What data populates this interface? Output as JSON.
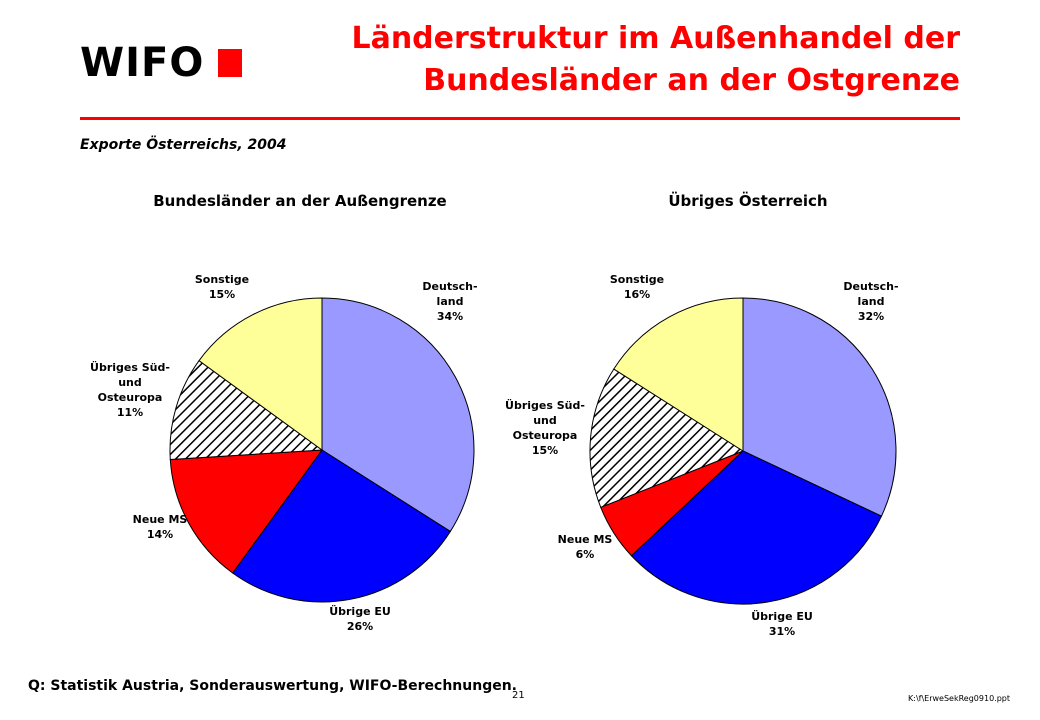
{
  "logo": {
    "text": "WIFO",
    "square_color": "#ff0000"
  },
  "title": {
    "line1": "Länderstruktur im Außenhandel der",
    "line2": "Bundesländer an der Ostgrenze",
    "color": "#ff0000"
  },
  "rule_color": "#ff0000",
  "subtitle": "Exporte Österreichs, 2004",
  "source": "Q: Statistik Austria, Sonderauswertung, WIFO-Berechnungen.",
  "page_number": "21",
  "file_ref": "K:\\f\\ErweSekReg0910.ppt",
  "chart_data": [
    {
      "type": "pie",
      "title": "Bundesländer an der Außengrenze",
      "categories": [
        "Deutschland",
        "Übrige EU",
        "Neue MS",
        "Übriges Süd- und Osteuropa",
        "Sonstige"
      ],
      "labels": [
        [
          "Deutsch-",
          "land",
          "34%"
        ],
        [
          "Übrige EU",
          "26%"
        ],
        [
          "Neue MS",
          "14%"
        ],
        [
          "Übriges Süd-",
          "und",
          "Osteuropa",
          "11%"
        ],
        [
          "Sonstige",
          "15%"
        ]
      ],
      "values": [
        34,
        26,
        14,
        11,
        15
      ],
      "colors": [
        "#9999ff",
        "#0000ff",
        "#ff0000",
        "hatch",
        "#ffff99"
      ]
    },
    {
      "type": "pie",
      "title": "Übriges Österreich",
      "categories": [
        "Deutschland",
        "Übrige EU",
        "Neue MS",
        "Übriges Süd- und Osteuropa",
        "Sonstige"
      ],
      "labels": [
        [
          "Deutsch-",
          "land",
          "32%"
        ],
        [
          "Übrige EU",
          "31%"
        ],
        [
          "Neue MS",
          "6%"
        ],
        [
          "Übriges Süd-",
          "und",
          "Osteuropa",
          "15%"
        ],
        [
          "Sonstige",
          "16%"
        ]
      ],
      "values": [
        32,
        31,
        6,
        15,
        16
      ],
      "colors": [
        "#9999ff",
        "#0000ff",
        "#ff0000",
        "hatch",
        "#ffff99"
      ]
    }
  ]
}
